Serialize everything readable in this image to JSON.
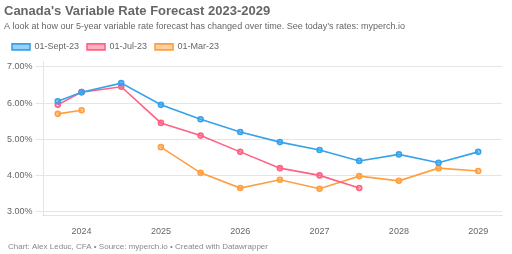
{
  "chart_data": {
    "type": "line",
    "title": "Canada's Variable Rate Forecast 2023-2029",
    "subtitle": "A look at how our 5-year variable rate forecast has changed over time. See today’s rates: myperch.io",
    "caption": "Chart: Alex Leduc, CFA • Source: myperch.io • Created with Datawrapper",
    "x": [
      2023.7,
      2024.0,
      2024.5,
      2025.0,
      2025.5,
      2026.0,
      2026.5,
      2027.0,
      2027.5,
      2028.0,
      2028.5,
      2029.0
    ],
    "series": [
      {
        "name": "01-Sept-23",
        "values": [
          6.05,
          6.3,
          6.55,
          5.95,
          5.55,
          5.2,
          4.92,
          4.7,
          4.4,
          4.58,
          4.35,
          4.65
        ]
      },
      {
        "name": "01-Jul-23",
        "values": [
          5.95,
          6.3,
          6.45,
          5.45,
          5.1,
          4.65,
          4.2,
          4.0,
          3.65,
          null,
          null,
          null
        ]
      },
      {
        "name": "01-Mar-23",
        "values": [
          5.7,
          5.8,
          null,
          4.78,
          4.07,
          3.65,
          3.88,
          3.63,
          3.98,
          3.85,
          4.2,
          4.12
        ]
      }
    ],
    "xlim": [
      2023.52,
      2029.3
    ],
    "xticks": [
      2024,
      2025,
      2026,
      2027,
      2028,
      2029
    ],
    "ylim": [
      2.9,
      7.15
    ],
    "yticks": [
      {
        "value": 3.0,
        "label": "3.00%"
      },
      {
        "value": 4.0,
        "label": "4.00%"
      },
      {
        "value": 5.0,
        "label": "5.00%"
      },
      {
        "value": 6.0,
        "label": "6.00%"
      },
      {
        "value": 7.0,
        "label": "7.00%"
      }
    ],
    "grid": "y",
    "legend": "top",
    "marker": "circle"
  }
}
